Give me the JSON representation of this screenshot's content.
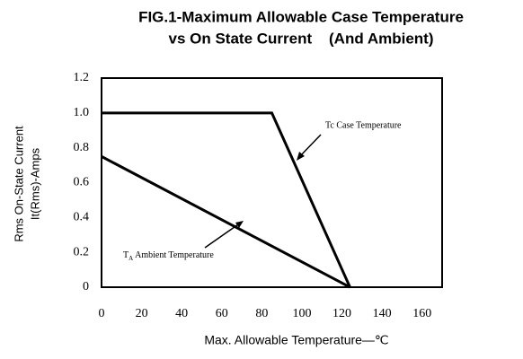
{
  "chart_data": {
    "type": "line",
    "title": [
      "FIG.1-Maximum Allowable Case Temperature",
      "vs On State Current    (And Ambient)"
    ],
    "x_label": "Max. Allowable Temperature—℃",
    "y_label": [
      "Rms On-State Current",
      "It(Rms)-Amps"
    ],
    "series": [
      {
        "name": "Tc Case Temperature",
        "color": "#000000",
        "x": [
          0,
          85,
          124
        ],
        "values": [
          1.0,
          1.0,
          0
        ]
      },
      {
        "name": "Ambient Temperature",
        "color": "#000000",
        "x": [
          0,
          124
        ],
        "values": [
          0.75,
          0
        ]
      }
    ],
    "annotations": [
      {
        "text": "Tc Case Temperature"
      },
      {
        "text": "T",
        "sub": "A",
        "rest": " Ambient Temperature"
      }
    ],
    "xlim": [
      0,
      170
    ],
    "xticks": [
      0,
      20,
      40,
      60,
      80,
      100,
      120,
      140,
      160
    ],
    "ylim": [
      0,
      1.2
    ],
    "yticks": [
      0,
      0.2,
      0.4,
      0.6,
      0.8,
      {
        "value": 1,
        "label": "1.0"
      },
      1.2
    ],
    "grid": false
  }
}
